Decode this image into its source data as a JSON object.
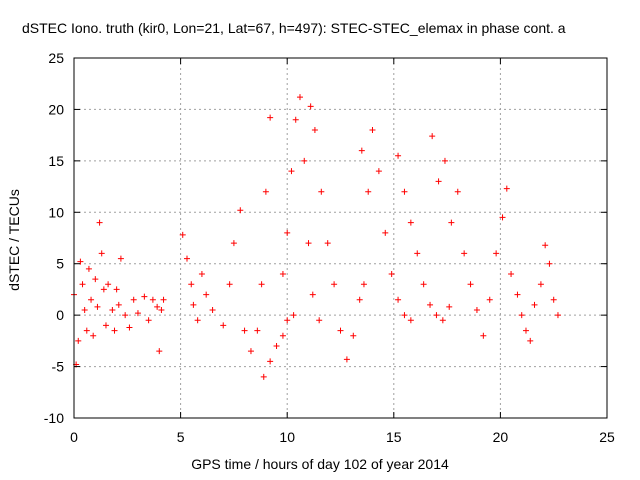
{
  "chart_data": {
    "type": "scatter",
    "title": "dSTEC Iono. truth (kir0, Lon=21, Lat=67, h=497): STEC-STEC_elemax in phase cont. a",
    "xlabel": "GPS time / hours of day 102 of year 2014",
    "ylabel": "dSTEC  / TECUs",
    "xlim": [
      0,
      25
    ],
    "ylim": [
      -10,
      25
    ],
    "xticks": [
      "0",
      "5",
      "10",
      "15",
      "20",
      "25"
    ],
    "yticks": [
      "-10",
      "-5",
      "0",
      "5",
      "10",
      "15",
      "20",
      "25"
    ],
    "grid": true,
    "marker": "+",
    "color": "#ff0000",
    "series": [
      {
        "points": [
          [
            0.0,
            2.0
          ],
          [
            0.1,
            -4.8
          ],
          [
            0.2,
            -2.5
          ],
          [
            0.3,
            5.2
          ],
          [
            0.4,
            3.0
          ],
          [
            0.5,
            0.5
          ],
          [
            0.6,
            -1.5
          ],
          [
            0.7,
            4.5
          ],
          [
            0.8,
            1.5
          ],
          [
            0.9,
            -2.0
          ],
          [
            1.0,
            3.5
          ],
          [
            1.1,
            0.8
          ],
          [
            1.2,
            9.0
          ],
          [
            1.3,
            6.0
          ],
          [
            1.4,
            2.5
          ],
          [
            1.5,
            -1.0
          ],
          [
            1.6,
            3.0
          ],
          [
            1.8,
            0.5
          ],
          [
            1.9,
            -1.5
          ],
          [
            2.0,
            2.5
          ],
          [
            2.1,
            1.0
          ],
          [
            2.2,
            5.5
          ],
          [
            2.4,
            0.0
          ],
          [
            2.6,
            -1.2
          ],
          [
            2.8,
            1.5
          ],
          [
            3.0,
            0.2
          ],
          [
            3.3,
            1.8
          ],
          [
            3.5,
            -0.5
          ],
          [
            3.7,
            1.5
          ],
          [
            3.9,
            0.8
          ],
          [
            4.0,
            -3.5
          ],
          [
            4.1,
            0.5
          ],
          [
            4.2,
            1.5
          ]
        ]
      },
      {
        "points": [
          [
            5.1,
            7.8
          ],
          [
            5.3,
            5.5
          ],
          [
            5.5,
            3.0
          ],
          [
            5.6,
            1.0
          ],
          [
            5.8,
            -0.5
          ],
          [
            6.0,
            4.0
          ],
          [
            6.2,
            2.0
          ],
          [
            6.5,
            0.5
          ],
          [
            7.0,
            -1.0
          ],
          [
            7.3,
            3.0
          ],
          [
            7.5,
            7.0
          ],
          [
            7.8,
            10.2
          ],
          [
            8.0,
            -1.5
          ],
          [
            8.3,
            -3.5
          ],
          [
            8.6,
            -1.5
          ],
          [
            8.8,
            3.0
          ],
          [
            9.0,
            12.0
          ],
          [
            9.2,
            19.2
          ]
        ]
      },
      {
        "points": [
          [
            8.9,
            -6.0
          ],
          [
            9.2,
            -4.5
          ],
          [
            9.5,
            -3.0
          ],
          [
            9.8,
            -2.0
          ],
          [
            10.0,
            -0.5
          ],
          [
            10.3,
            0.0
          ]
        ]
      },
      {
        "points": [
          [
            9.8,
            4.0
          ],
          [
            10.0,
            8.0
          ],
          [
            10.2,
            14.0
          ],
          [
            10.4,
            19.0
          ],
          [
            10.6,
            21.2
          ],
          [
            10.8,
            15.0
          ],
          [
            11.0,
            7.0
          ],
          [
            11.2,
            2.0
          ],
          [
            11.5,
            -0.5
          ]
        ]
      },
      {
        "points": [
          [
            11.1,
            20.3
          ],
          [
            11.3,
            18.0
          ],
          [
            11.6,
            12.0
          ],
          [
            11.9,
            7.0
          ],
          [
            12.2,
            3.0
          ],
          [
            12.5,
            -1.5
          ],
          [
            12.8,
            -4.3
          ],
          [
            13.1,
            -2.0
          ],
          [
            13.4,
            1.5
          ],
          [
            13.6,
            3.0
          ]
        ]
      },
      {
        "points": [
          [
            13.5,
            16.0
          ],
          [
            13.8,
            12.0
          ],
          [
            14.0,
            18.0
          ],
          [
            14.3,
            14.0
          ],
          [
            14.6,
            8.0
          ],
          [
            14.9,
            4.0
          ],
          [
            15.2,
            1.5
          ],
          [
            15.5,
            0.0
          ],
          [
            15.8,
            -0.5
          ]
        ]
      },
      {
        "points": [
          [
            15.2,
            15.5
          ],
          [
            15.5,
            12.0
          ],
          [
            15.8,
            9.0
          ],
          [
            16.1,
            6.0
          ],
          [
            16.4,
            3.0
          ],
          [
            16.7,
            1.0
          ],
          [
            17.0,
            0.0
          ],
          [
            17.3,
            -0.5
          ],
          [
            17.6,
            0.8
          ]
        ]
      },
      {
        "points": [
          [
            16.8,
            17.4
          ],
          [
            17.1,
            13.0
          ],
          [
            17.4,
            15.0
          ],
          [
            17.7,
            9.0
          ],
          [
            18.0,
            12.0
          ],
          [
            18.3,
            6.0
          ],
          [
            18.6,
            3.0
          ],
          [
            18.9,
            0.5
          ],
          [
            19.2,
            -2.0
          ],
          [
            19.5,
            1.5
          ],
          [
            19.8,
            6.0
          ],
          [
            20.1,
            9.5
          ],
          [
            20.3,
            12.3
          ]
        ]
      },
      {
        "points": [
          [
            20.5,
            4.0
          ],
          [
            20.8,
            2.0
          ],
          [
            21.0,
            0.0
          ],
          [
            21.2,
            -1.5
          ],
          [
            21.4,
            -2.5
          ],
          [
            21.6,
            1.0
          ],
          [
            21.9,
            3.0
          ],
          [
            22.1,
            6.8
          ],
          [
            22.3,
            5.0
          ],
          [
            22.5,
            1.5
          ],
          [
            22.7,
            0.0
          ]
        ]
      }
    ]
  }
}
